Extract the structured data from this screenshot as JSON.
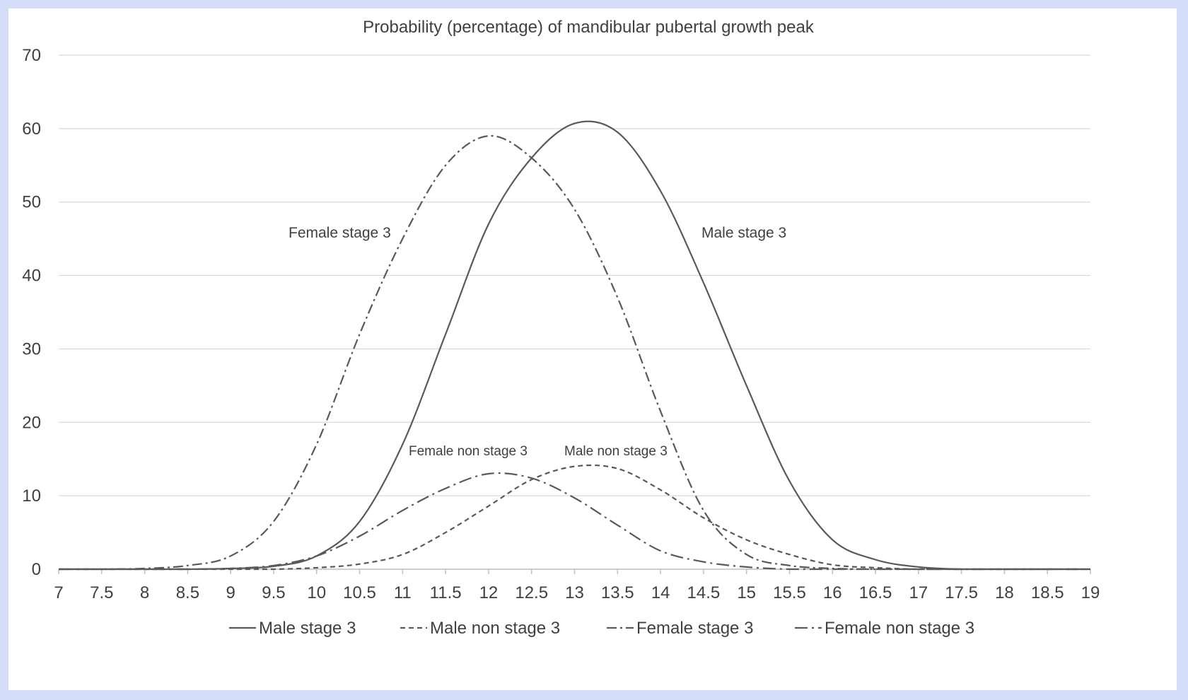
{
  "chart_data": {
    "type": "line",
    "title": "Probability (percentage) of mandibular pubertal growth peak",
    "xlabel": "",
    "ylabel": "",
    "x": [
      7,
      7.5,
      8,
      8.5,
      9,
      9.5,
      10,
      10.5,
      11,
      11.5,
      12,
      12.5,
      13,
      13.5,
      14,
      14.5,
      15,
      15.5,
      16,
      16.5,
      17,
      17.5,
      18,
      18.5,
      19
    ],
    "x_tick_labels": [
      "7",
      "7.5",
      "8",
      "8.5",
      "9",
      "9.5",
      "10",
      "10.5",
      "11",
      "11.5",
      "12",
      "12.5",
      "13",
      "13.5",
      "14",
      "14.5",
      "15",
      "15.5",
      "16",
      "16.5",
      "17",
      "17.5",
      "18",
      "18.5",
      "19"
    ],
    "ylim": [
      0,
      70
    ],
    "y_ticks": [
      0,
      10,
      20,
      30,
      40,
      50,
      60,
      70
    ],
    "grid": "horizontal",
    "legend_position": "bottom",
    "series": [
      {
        "name": "Male stage 3",
        "dash": "",
        "values": [
          0,
          0,
          0,
          0,
          0.1,
          0.4,
          1.8,
          6.5,
          17,
          32,
          47,
          56,
          60.7,
          59.5,
          51.5,
          39,
          25,
          12,
          4,
          1.3,
          0.3,
          0,
          0,
          0,
          0
        ]
      },
      {
        "name": "Male non stage 3",
        "dash": "7 5",
        "values": [
          0,
          0,
          0,
          0,
          0,
          0,
          0.2,
          0.7,
          2,
          5,
          8.6,
          12.2,
          14,
          13.7,
          10.8,
          7,
          4,
          2,
          0.6,
          0.2,
          0,
          0,
          0,
          0,
          0
        ]
      },
      {
        "name": "Female stage 3",
        "dash": "14 5 3 5",
        "values": [
          0,
          0,
          0.1,
          0.5,
          1.8,
          6.5,
          17,
          32,
          45,
          55,
          59,
          56,
          49,
          37,
          21.5,
          8,
          2,
          0.5,
          0.1,
          0,
          0,
          0,
          0,
          0,
          0
        ]
      },
      {
        "name": "Female non stage 3",
        "dash": "18 6 3 6",
        "values": [
          0,
          0,
          0,
          0,
          0.1,
          0.5,
          1.8,
          4.5,
          8,
          11,
          13,
          12.4,
          9.7,
          6,
          2.5,
          1,
          0.3,
          0,
          0,
          0,
          0,
          0,
          0,
          0,
          0
        ]
      }
    ],
    "annotations": [
      {
        "text": "Female stage 3",
        "series": "Female stage 3"
      },
      {
        "text": "Male stage 3",
        "series": "Male stage 3"
      },
      {
        "text": "Female non stage 3",
        "series": "Female non stage 3"
      },
      {
        "text": "Male non stage 3",
        "series": "Male non stage 3"
      }
    ],
    "line_color": "#595959"
  }
}
